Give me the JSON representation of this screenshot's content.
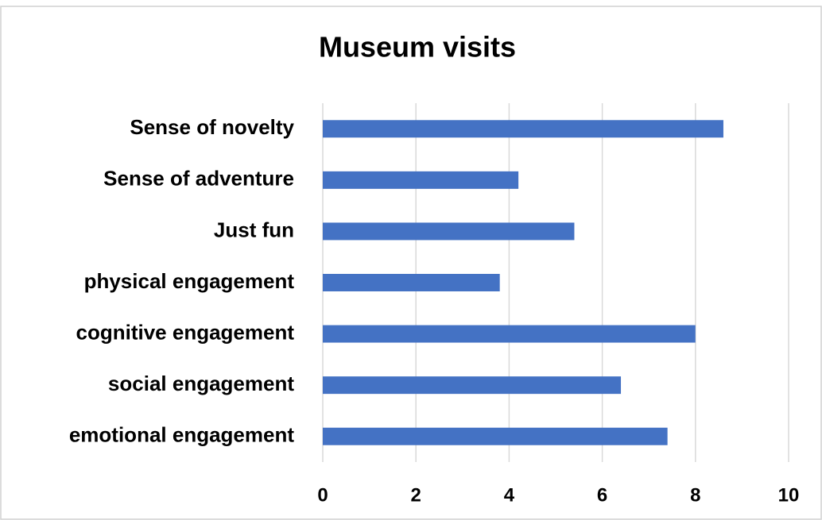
{
  "chart_data": {
    "type": "bar",
    "orientation": "horizontal",
    "title": "Museum visits",
    "categories": [
      "Sense of novelty",
      "Sense of adventure",
      "Just fun",
      "physical engagement",
      "cognitive engagement",
      "social engagement",
      "emotional engagement"
    ],
    "values": [
      8.6,
      4.2,
      5.4,
      3.8,
      8.0,
      6.4,
      7.4
    ],
    "color": "#4472c4",
    "xlim": [
      0,
      10
    ],
    "xticks": [
      0,
      2,
      4,
      6,
      8,
      10
    ],
    "grid": true
  }
}
